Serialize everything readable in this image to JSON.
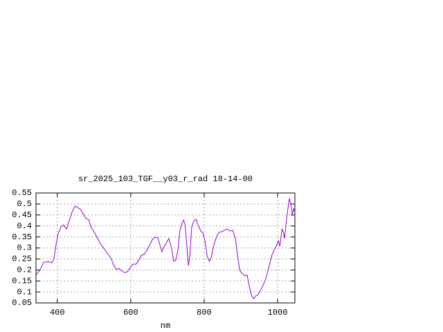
{
  "chart_data": {
    "type": "line",
    "title": "sr_2025_103_TGF__y03_r_rad 18-14-00",
    "x_label": "nm",
    "xlim": [
      342,
      1047
    ],
    "xticks": [
      400,
      600,
      800,
      1000
    ],
    "ylim": [
      0.05,
      0.55
    ],
    "yticks": [
      0.05,
      0.1,
      0.15,
      0.2,
      0.25,
      0.3,
      0.35,
      0.4,
      0.45,
      0.5,
      0.55
    ],
    "grid": true,
    "series": [
      {
        "color": "#9400d3",
        "x": [
          342,
          353,
          363,
          376,
          385,
          391,
          396,
          402,
          410,
          417,
          425,
          433,
          440,
          448,
          455,
          463,
          470,
          478,
          485,
          493,
          500,
          508,
          517,
          527,
          536,
          546,
          553,
          561,
          568,
          576,
          583,
          591,
          598,
          606,
          614,
          621,
          629,
          636,
          644,
          651,
          659,
          666,
          674,
          680,
          685,
          689,
          697,
          704,
          712,
          717,
          723,
          729,
          734,
          740,
          744,
          748,
          753,
          757,
          761,
          766,
          772,
          778,
          783,
          791,
          797,
          802,
          808,
          814,
          819,
          825,
          833,
          840,
          848,
          855,
          863,
          870,
          878,
          885,
          891,
          897,
          904,
          912,
          917,
          923,
          929,
          935,
          940,
          946,
          952,
          957,
          963,
          968,
          974,
          980,
          985,
          991,
          997,
          1002,
          1006,
          1012,
          1016,
          1019,
          1023,
          1029,
          1032,
          1036,
          1040,
          1044,
          1047
        ],
        "values": [
          0.176,
          0.2,
          0.235,
          0.238,
          0.232,
          0.25,
          0.31,
          0.364,
          0.396,
          0.405,
          0.386,
          0.427,
          0.462,
          0.49,
          0.484,
          0.475,
          0.456,
          0.434,
          0.43,
          0.39,
          0.374,
          0.349,
          0.32,
          0.298,
          0.276,
          0.254,
          0.223,
          0.201,
          0.207,
          0.195,
          0.188,
          0.192,
          0.21,
          0.226,
          0.226,
          0.242,
          0.267,
          0.27,
          0.289,
          0.311,
          0.339,
          0.349,
          0.346,
          0.311,
          0.283,
          0.3,
          0.324,
          0.343,
          0.292,
          0.239,
          0.245,
          0.295,
          0.38,
          0.415,
          0.427,
          0.405,
          0.308,
          0.22,
          0.264,
          0.396,
          0.424,
          0.43,
          0.405,
          0.377,
          0.368,
          0.333,
          0.264,
          0.239,
          0.254,
          0.305,
          0.349,
          0.371,
          0.374,
          0.38,
          0.386,
          0.377,
          0.38,
          0.343,
          0.264,
          0.198,
          0.182,
          0.173,
          0.176,
          0.126,
          0.085,
          0.069,
          0.082,
          0.085,
          0.103,
          0.119,
          0.141,
          0.16,
          0.2,
          0.239,
          0.27,
          0.292,
          0.311,
          0.333,
          0.308,
          0.386,
          0.371,
          0.343,
          0.412,
          0.49,
          0.525,
          0.497,
          0.452,
          0.481,
          0.459
        ]
      }
    ]
  }
}
